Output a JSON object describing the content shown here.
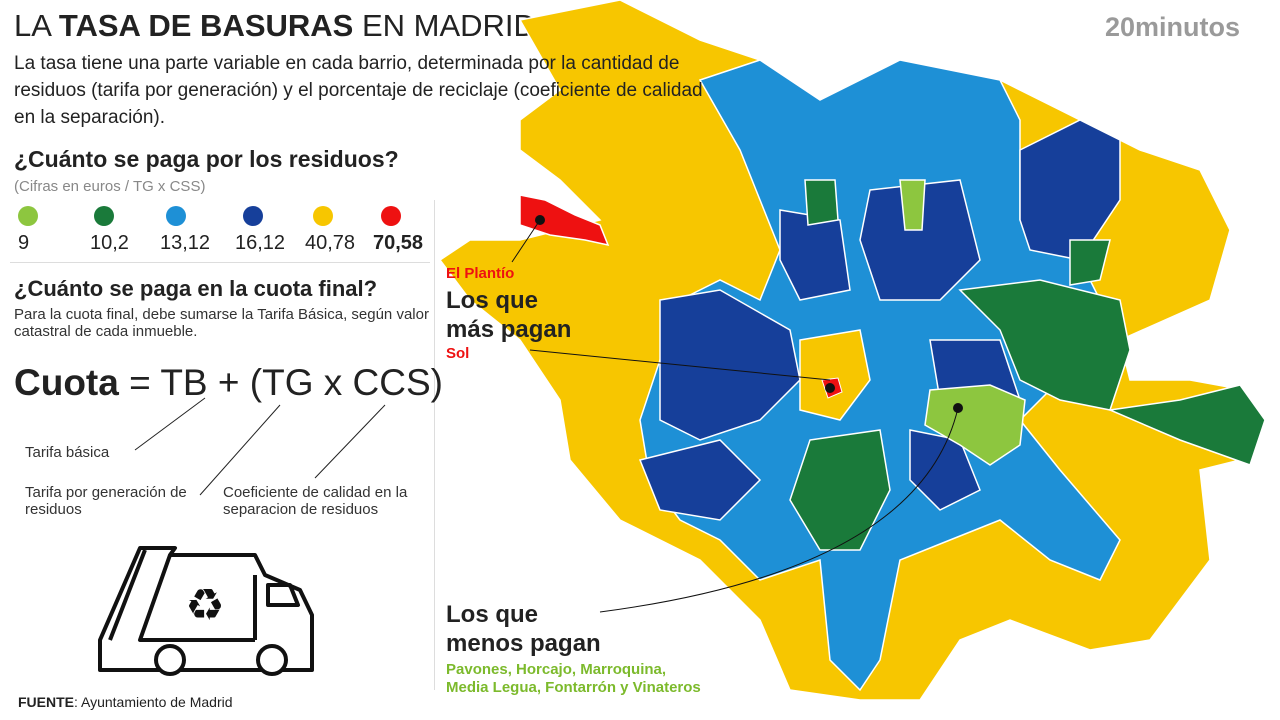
{
  "header": {
    "title_pre": "LA ",
    "title_bold": "TASA DE BASURAS",
    "title_post": " EN MADRID",
    "brand": "20minutos",
    "intro": "La tasa tiene una parte variable en cada barrio, determinada por la cantidad de residuos (tarifa por generación) y el porcentaje de reciclaje (coeficiente de calidad en la separación)."
  },
  "legend": {
    "title": "¿Cuánto se paga por los residuos?",
    "subtitle": "(Cifras en euros / TG x CSS)",
    "items": [
      {
        "value": "9",
        "color": "#8dc63f"
      },
      {
        "value": "10,2",
        "color": "#1a7a3a"
      },
      {
        "value": "13,12",
        "color": "#1e90d6"
      },
      {
        "value": "16,12",
        "color": "#163f9a"
      },
      {
        "value": "40,78",
        "color": "#f7c600"
      },
      {
        "value": "70,58",
        "color": "#ee1111"
      }
    ]
  },
  "quota": {
    "title": "¿Cuánto se paga en la cuota final?",
    "text": "Para la cuota final, debe sumarse la Tarifa Básica, según valor catastral de cada inmueble.",
    "formula_bold": "Cuota",
    "formula_rest": " = TB + (TG x CCS)",
    "labels": {
      "tb": "Tarifa básica",
      "tg": "Tarifa por generación de residuos",
      "ccs": "Coeficiente de calidad en la separacion de residuos"
    }
  },
  "map": {
    "plantio": "El Plantío",
    "most_title_1": "Los que",
    "most_title_2": "más pagan",
    "sol": "Sol",
    "least_title_1": "Los que",
    "least_title_2": "menos pagan",
    "least_list_1": "Pavones, Horcajo, Marroquina,",
    "least_list_2": "Media Legua, Fontarrón y Vinateros"
  },
  "source": {
    "label": "FUENTE",
    "text": ": Ayuntamiento de Madrid"
  }
}
